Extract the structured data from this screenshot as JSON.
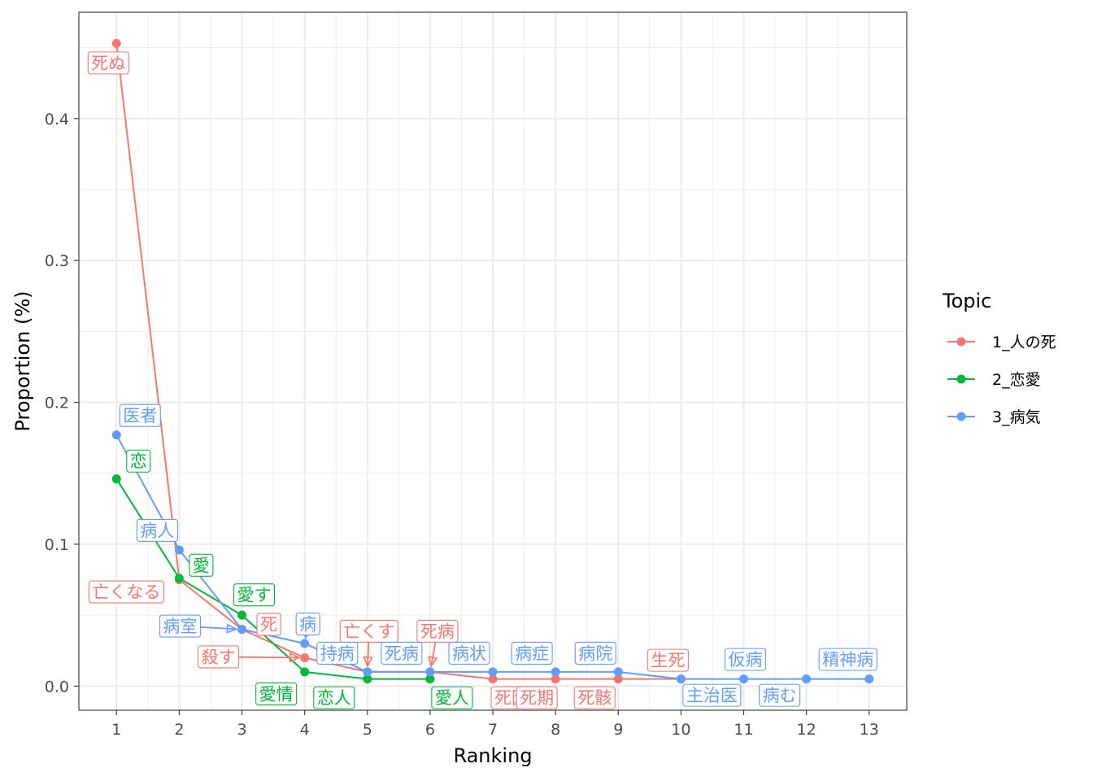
{
  "chart_data": {
    "type": "line",
    "xlabel": "Ranking",
    "ylabel": "Proportion (%)",
    "xlim": [
      0.4,
      13.6
    ],
    "ylim": [
      -0.017,
      0.475
    ],
    "x_ticks": [
      1,
      2,
      3,
      4,
      5,
      6,
      7,
      8,
      9,
      10,
      11,
      12,
      13
    ],
    "y_ticks": [
      0.0,
      0.1,
      0.2,
      0.3,
      0.4
    ],
    "y_tick_labels": [
      "0.0",
      "0.1",
      "0.2",
      "0.3",
      "0.4"
    ],
    "grid": true,
    "legend_title": "Topic",
    "legend_position": "right",
    "series": [
      {
        "name": "1_人の死",
        "color": "#F8766D",
        "points": [
          {
            "x": 1,
            "y": 0.453,
            "label": "死ぬ"
          },
          {
            "x": 2,
            "y": 0.075,
            "label": "亡くなる"
          },
          {
            "x": 3,
            "y": 0.04,
            "label": "死"
          },
          {
            "x": 4,
            "y": 0.02,
            "label": "殺す"
          },
          {
            "x": 5,
            "y": 0.01,
            "label": "亡くす"
          },
          {
            "x": 6,
            "y": 0.01,
            "label": "死病"
          },
          {
            "x": 7,
            "y": 0.005,
            "label": "死因"
          },
          {
            "x": 8,
            "y": 0.005,
            "label": "死期"
          },
          {
            "x": 9,
            "y": 0.005,
            "label": "死骸"
          },
          {
            "x": 10,
            "y": 0.005,
            "label": "生死"
          }
        ]
      },
      {
        "name": "2_恋愛",
        "color": "#00BA38",
        "points": [
          {
            "x": 1,
            "y": 0.146,
            "label": "恋"
          },
          {
            "x": 2,
            "y": 0.076,
            "label": "愛"
          },
          {
            "x": 3,
            "y": 0.05,
            "label": "愛す"
          },
          {
            "x": 4,
            "y": 0.01,
            "label": "愛情"
          },
          {
            "x": 5,
            "y": 0.005,
            "label": "恋人"
          },
          {
            "x": 6,
            "y": 0.005,
            "label": "愛人"
          }
        ]
      },
      {
        "name": "3_病気",
        "color": "#619CFF",
        "points": [
          {
            "x": 1,
            "y": 0.177,
            "label": "医者"
          },
          {
            "x": 2,
            "y": 0.096,
            "label": "病人"
          },
          {
            "x": 3,
            "y": 0.04,
            "label": "病室"
          },
          {
            "x": 4,
            "y": 0.03,
            "label": "病"
          },
          {
            "x": 5,
            "y": 0.01,
            "label": "持病"
          },
          {
            "x": 6,
            "y": 0.01,
            "label": "死病"
          },
          {
            "x": 7,
            "y": 0.01,
            "label": "病状"
          },
          {
            "x": 8,
            "y": 0.01,
            "label": "病症"
          },
          {
            "x": 9,
            "y": 0.01,
            "label": "病院"
          },
          {
            "x": 10,
            "y": 0.005,
            "label": "主治医"
          },
          {
            "x": 11,
            "y": 0.005,
            "label": "仮病"
          },
          {
            "x": 12,
            "y": 0.005,
            "label": "病む"
          },
          {
            "x": 13,
            "y": 0.005,
            "label": "精神病"
          }
        ]
      }
    ]
  }
}
